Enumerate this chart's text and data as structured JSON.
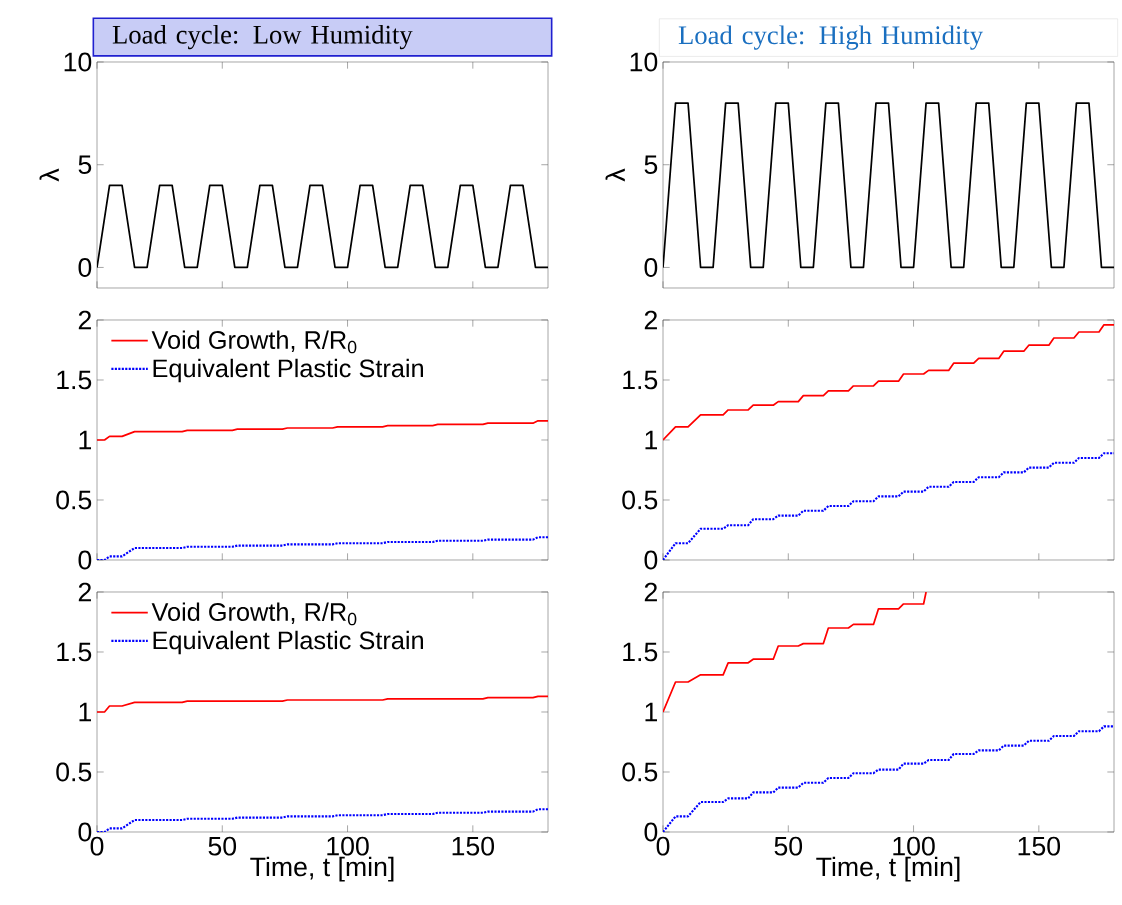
{
  "chart_data": [
    {
      "type": "line",
      "title": "Load cycle: Low Humidity",
      "ylabel": "λ",
      "xlim": [
        0,
        180
      ],
      "ylim": [
        -1,
        10
      ],
      "xticks": [
        0,
        50,
        100,
        150
      ],
      "yticks": [
        0,
        5,
        10
      ],
      "tick_labels": "y",
      "series": [
        {
          "color": "#000000",
          "line_style": "solid",
          "x": [
            0,
            5,
            10,
            15,
            20,
            25,
            30,
            35,
            40,
            45,
            50,
            55,
            60,
            65,
            70,
            75,
            80,
            85,
            90,
            95,
            100,
            105,
            110,
            115,
            120,
            125,
            130,
            135,
            140,
            145,
            150,
            155,
            160,
            165,
            170,
            175,
            180
          ],
          "values": [
            0,
            4,
            4,
            0,
            0,
            4,
            4,
            0,
            0,
            4,
            4,
            0,
            0,
            4,
            4,
            0,
            0,
            4,
            4,
            0,
            0,
            4,
            4,
            0,
            0,
            4,
            4,
            0,
            0,
            4,
            4,
            0,
            0,
            4,
            4,
            0,
            0
          ]
        }
      ]
    },
    {
      "type": "line",
      "title": "Load cycle: High Humidity",
      "ylabel": "λ",
      "xlim": [
        0,
        180
      ],
      "ylim": [
        -1,
        10
      ],
      "xticks": [
        0,
        50,
        100,
        150
      ],
      "yticks": [
        0,
        5,
        10
      ],
      "tick_labels": "y",
      "series": [
        {
          "color": "#000000",
          "line_style": "solid",
          "x": [
            0,
            5,
            10,
            15,
            20,
            25,
            30,
            35,
            40,
            45,
            50,
            55,
            60,
            65,
            70,
            75,
            80,
            85,
            90,
            95,
            100,
            105,
            110,
            115,
            120,
            125,
            130,
            135,
            140,
            145,
            150,
            155,
            160,
            165,
            170,
            175,
            180
          ],
          "values": [
            0,
            8,
            8,
            0,
            0,
            8,
            8,
            0,
            0,
            8,
            8,
            0,
            0,
            8,
            8,
            0,
            0,
            8,
            8,
            0,
            0,
            8,
            8,
            0,
            0,
            8,
            8,
            0,
            0,
            8,
            8,
            0,
            0,
            8,
            8,
            0,
            0
          ]
        }
      ]
    },
    {
      "type": "line",
      "xlim": [
        0,
        180
      ],
      "ylim": [
        0,
        2
      ],
      "xticks": [
        0,
        50,
        100,
        150
      ],
      "yticks": [
        0,
        0.5,
        1,
        1.5,
        2
      ],
      "tick_labels": "y",
      "legend": "top left",
      "series": [
        {
          "name": "Void Growth, R/R$_{0}$",
          "color": "#ff0000",
          "line_style": "solid",
          "x": [
            0,
            3,
            5,
            10,
            15,
            34,
            36,
            54,
            56,
            74,
            76,
            94,
            96,
            114,
            116,
            134,
            136,
            154,
            156,
            174,
            176,
            180
          ],
          "values": [
            1,
            1,
            1.03,
            1.03,
            1.07,
            1.07,
            1.08,
            1.08,
            1.09,
            1.09,
            1.1,
            1.1,
            1.11,
            1.11,
            1.12,
            1.12,
            1.13,
            1.13,
            1.14,
            1.14,
            1.16,
            1.16
          ]
        },
        {
          "name": "Equivalent Plastic Strain",
          "color": "#0000ff",
          "line_style": "dotted",
          "x": [
            0,
            3,
            5,
            10,
            15,
            34,
            36,
            54,
            56,
            74,
            76,
            94,
            96,
            114,
            116,
            134,
            136,
            154,
            156,
            174,
            176,
            180
          ],
          "values": [
            0,
            0,
            0.03,
            0.03,
            0.1,
            0.1,
            0.11,
            0.11,
            0.12,
            0.12,
            0.13,
            0.13,
            0.14,
            0.14,
            0.15,
            0.15,
            0.16,
            0.16,
            0.17,
            0.17,
            0.19,
            0.19
          ]
        }
      ]
    },
    {
      "type": "line",
      "xlim": [
        0,
        180
      ],
      "ylim": [
        0,
        2
      ],
      "xticks": [
        0,
        50,
        100,
        150
      ],
      "yticks": [
        0,
        0.5,
        1,
        1.5,
        2
      ],
      "tick_labels": "y",
      "series": [
        {
          "color": "#ff0000",
          "line_style": "solid",
          "x": [
            0,
            5,
            10,
            15,
            24,
            26,
            34,
            36,
            44,
            46,
            54,
            56,
            64,
            66,
            74,
            76,
            84,
            86,
            94,
            96,
            104,
            106,
            114,
            116,
            124,
            126,
            134,
            136,
            144,
            146,
            154,
            156,
            164,
            166,
            174,
            176,
            180
          ],
          "values": [
            1,
            1.11,
            1.11,
            1.21,
            1.21,
            1.25,
            1.25,
            1.29,
            1.29,
            1.32,
            1.32,
            1.37,
            1.37,
            1.41,
            1.41,
            1.45,
            1.45,
            1.49,
            1.49,
            1.55,
            1.55,
            1.58,
            1.58,
            1.64,
            1.64,
            1.68,
            1.68,
            1.74,
            1.74,
            1.79,
            1.79,
            1.85,
            1.85,
            1.9,
            1.9,
            1.96,
            1.96
          ]
        },
        {
          "color": "#0000ff",
          "line_style": "dotted",
          "x": [
            0,
            5,
            10,
            15,
            24,
            26,
            34,
            36,
            44,
            46,
            54,
            56,
            64,
            66,
            74,
            76,
            84,
            86,
            94,
            96,
            104,
            106,
            114,
            116,
            124,
            126,
            134,
            136,
            144,
            146,
            154,
            156,
            164,
            166,
            174,
            176,
            180
          ],
          "values": [
            0,
            0.14,
            0.14,
            0.26,
            0.26,
            0.29,
            0.29,
            0.34,
            0.34,
            0.37,
            0.37,
            0.41,
            0.41,
            0.45,
            0.45,
            0.49,
            0.49,
            0.53,
            0.53,
            0.57,
            0.57,
            0.61,
            0.61,
            0.65,
            0.65,
            0.69,
            0.69,
            0.73,
            0.73,
            0.77,
            0.77,
            0.81,
            0.81,
            0.85,
            0.85,
            0.89,
            0.89
          ]
        }
      ]
    },
    {
      "type": "line",
      "xlabel": "Time, t [min]",
      "xlim": [
        0,
        180
      ],
      "ylim": [
        0,
        2
      ],
      "xticks": [
        0,
        50,
        100,
        150
      ],
      "yticks": [
        0,
        0.5,
        1,
        1.5,
        2
      ],
      "legend": "top left",
      "series": [
        {
          "name": "Void Growth, R/R$_{0}$",
          "color": "#ff0000",
          "line_style": "solid",
          "x": [
            0,
            3,
            5,
            10,
            15,
            34,
            36,
            54,
            56,
            74,
            76,
            94,
            96,
            114,
            116,
            134,
            136,
            154,
            156,
            174,
            176,
            180
          ],
          "values": [
            1,
            1,
            1.05,
            1.05,
            1.08,
            1.08,
            1.09,
            1.09,
            1.09,
            1.09,
            1.1,
            1.1,
            1.1,
            1.1,
            1.11,
            1.11,
            1.11,
            1.11,
            1.12,
            1.12,
            1.13,
            1.13
          ]
        },
        {
          "name": "Equivalent Plastic Strain",
          "color": "#0000ff",
          "line_style": "dotted",
          "x": [
            0,
            3,
            5,
            10,
            15,
            34,
            36,
            54,
            56,
            74,
            76,
            94,
            96,
            114,
            116,
            134,
            136,
            154,
            156,
            174,
            176,
            180
          ],
          "values": [
            0,
            0,
            0.03,
            0.03,
            0.1,
            0.1,
            0.11,
            0.11,
            0.12,
            0.12,
            0.13,
            0.13,
            0.14,
            0.14,
            0.15,
            0.15,
            0.16,
            0.16,
            0.17,
            0.17,
            0.19,
            0.19
          ]
        }
      ]
    },
    {
      "type": "line",
      "xlabel": "Time, t [min]",
      "xlim": [
        0,
        180
      ],
      "ylim": [
        0,
        2
      ],
      "xticks": [
        0,
        50,
        100,
        150
      ],
      "yticks": [
        0,
        0.5,
        1,
        1.5,
        2
      ],
      "series": [
        {
          "color": "#ff0000",
          "line_style": "solid",
          "x": [
            0,
            5,
            10,
            15,
            24,
            26,
            34,
            36,
            44,
            46,
            54,
            56,
            64,
            66,
            74,
            76,
            84,
            86,
            94,
            96,
            104,
            105
          ],
          "values": [
            1,
            1.25,
            1.25,
            1.31,
            1.31,
            1.41,
            1.41,
            1.44,
            1.44,
            1.55,
            1.55,
            1.57,
            1.57,
            1.7,
            1.7,
            1.73,
            1.73,
            1.86,
            1.86,
            1.9,
            1.9,
            2
          ]
        },
        {
          "color": "#0000ff",
          "line_style": "dotted",
          "x": [
            0,
            5,
            10,
            15,
            24,
            26,
            34,
            36,
            44,
            46,
            54,
            56,
            64,
            66,
            74,
            76,
            84,
            86,
            94,
            96,
            104,
            106,
            114,
            116,
            124,
            126,
            134,
            136,
            144,
            146,
            154,
            156,
            164,
            166,
            174,
            176,
            180
          ],
          "values": [
            0,
            0.13,
            0.13,
            0.25,
            0.25,
            0.28,
            0.28,
            0.33,
            0.33,
            0.37,
            0.37,
            0.41,
            0.41,
            0.45,
            0.45,
            0.49,
            0.49,
            0.52,
            0.52,
            0.57,
            0.57,
            0.6,
            0.6,
            0.65,
            0.65,
            0.68,
            0.68,
            0.72,
            0.72,
            0.76,
            0.76,
            0.8,
            0.8,
            0.84,
            0.84,
            0.88,
            0.88
          ]
        }
      ]
    }
  ]
}
